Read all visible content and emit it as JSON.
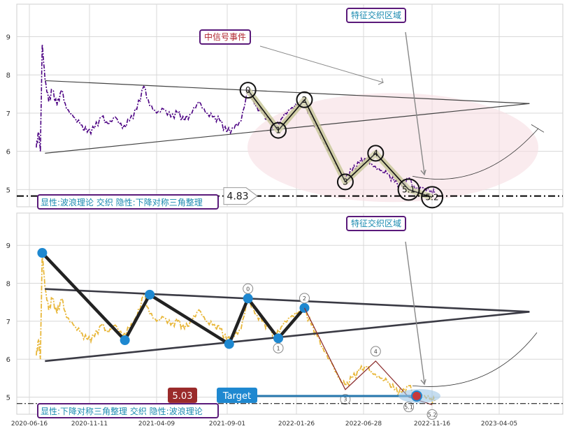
{
  "colors": {
    "price_top": "#4b0082",
    "price_bottom": "#e8b73a",
    "swing_fill": "#c8c89a",
    "box_border": "#5a1a7a",
    "box_text": "#1a8ab0",
    "event_text": "#b0262e",
    "ellipse": "#f7dde2",
    "marker_blue": "#1e88d0",
    "badge_red": "#9a2a2a"
  },
  "top_panel": {
    "y_ticks": [
      "9",
      "8",
      "7",
      "6",
      "5"
    ],
    "callout_area": "特征交织区域",
    "callout_event": "中信号事件",
    "footer": "显性:波浪理论 交织 隐性:下降对称三角整理",
    "level_label": "4.83",
    "wave_labels": [
      "0",
      "1",
      "2",
      "3",
      "4",
      "5.1",
      "5.2"
    ]
  },
  "bottom_panel": {
    "y_ticks": [
      "9",
      "8",
      "7",
      "6",
      "5"
    ],
    "callout_area": "特征交织区域",
    "footer": "显性:下降对称三角整理 交织 隐性:波浪理论",
    "badge_value": "5.03",
    "target_label": "Target",
    "wave_labels": [
      "0",
      "1",
      "2",
      "3",
      "4",
      "5.1",
      "5.2"
    ]
  },
  "chart_data": {
    "type": "line",
    "x_tick_labels": [
      "2020-06-16",
      "2020-11-11",
      "2021-04-09",
      "2021-09-01",
      "2022-01-26",
      "2022-06-28",
      "2022-11-16",
      "2023-04-05"
    ],
    "ylim": [
      4.6,
      9.8
    ],
    "price_series": [
      [
        "2020-07-01",
        6.1
      ],
      [
        "2020-07-06",
        6.5
      ],
      [
        "2020-07-10",
        6.0
      ],
      [
        "2020-07-14",
        8.8
      ],
      [
        "2020-07-20",
        7.9
      ],
      [
        "2020-07-28",
        7.3
      ],
      [
        "2020-08-05",
        7.6
      ],
      [
        "2020-08-15",
        7.2
      ],
      [
        "2020-08-25",
        7.6
      ],
      [
        "2020-09-05",
        7.1
      ],
      [
        "2020-09-20",
        6.9
      ],
      [
        "2020-10-05",
        6.7
      ],
      [
        "2020-10-20",
        6.5
      ],
      [
        "2020-11-05",
        6.6
      ],
      [
        "2020-11-20",
        6.9
      ],
      [
        "2020-12-05",
        6.7
      ],
      [
        "2020-12-20",
        6.9
      ],
      [
        "2021-01-05",
        6.6
      ],
      [
        "2021-01-20",
        6.8
      ],
      [
        "2021-02-05",
        7.1
      ],
      [
        "2021-02-20",
        7.7
      ],
      [
        "2021-03-05",
        7.2
      ],
      [
        "2021-03-20",
        7.0
      ],
      [
        "2021-04-05",
        7.1
      ],
      [
        "2021-04-20",
        6.9
      ],
      [
        "2021-05-05",
        7.0
      ],
      [
        "2021-05-20",
        6.8
      ],
      [
        "2021-06-05",
        7.0
      ],
      [
        "2021-06-20",
        7.3
      ],
      [
        "2021-07-05",
        7.0
      ],
      [
        "2021-07-20",
        6.9
      ],
      [
        "2021-08-05",
        6.8
      ],
      [
        "2021-08-20",
        6.5
      ],
      [
        "2021-09-05",
        6.6
      ],
      [
        "2021-09-20",
        6.8
      ],
      [
        "2021-10-05",
        7.6
      ],
      [
        "2021-10-20",
        7.2
      ],
      [
        "2021-11-05",
        7.0
      ],
      [
        "2021-11-20",
        6.8
      ],
      [
        "2021-12-05",
        6.6
      ],
      [
        "2021-12-20",
        6.9
      ],
      [
        "2022-01-05",
        7.1
      ],
      [
        "2022-01-20",
        7.2
      ],
      [
        "2022-02-05",
        7.3
      ],
      [
        "2022-02-20",
        6.9
      ],
      [
        "2022-03-05",
        6.6
      ],
      [
        "2022-03-20",
        6.2
      ],
      [
        "2022-04-05",
        5.9
      ],
      [
        "2022-04-20",
        5.5
      ],
      [
        "2022-05-05",
        5.3
      ],
      [
        "2022-05-20",
        5.5
      ],
      [
        "2022-06-05",
        5.7
      ],
      [
        "2022-06-20",
        5.8
      ],
      [
        "2022-07-05",
        5.6
      ],
      [
        "2022-07-20",
        5.5
      ],
      [
        "2022-08-05",
        5.4
      ],
      [
        "2022-08-20",
        5.2
      ],
      [
        "2022-09-05",
        5.1
      ],
      [
        "2022-09-20",
        5.3
      ],
      [
        "2022-10-05",
        5.0
      ],
      [
        "2022-10-20",
        5.05
      ],
      [
        "2022-11-05",
        4.95
      ],
      [
        "2022-11-16",
        4.9
      ]
    ],
    "wave_points": [
      {
        "label": "0",
        "date": "2021-10-05",
        "value": 7.6
      },
      {
        "label": "1",
        "date": "2021-12-10",
        "value": 6.55
      },
      {
        "label": "2",
        "date": "2022-02-05",
        "value": 7.35
      },
      {
        "label": "3",
        "date": "2022-05-05",
        "value": 5.2
      },
      {
        "label": "4",
        "date": "2022-07-10",
        "value": 5.95
      },
      {
        "label": "5.1",
        "date": "2022-09-20",
        "value": 5.0
      },
      {
        "label": "5.2",
        "date": "2022-11-10",
        "value": 4.8
      }
    ],
    "triangle_upper": [
      [
        "2020-07-20",
        7.85
      ],
      [
        "2023-06-10",
        7.25
      ]
    ],
    "triangle_lower": [
      [
        "2020-07-20",
        5.95
      ],
      [
        "2023-06-10",
        7.25
      ]
    ],
    "bottom_zigzag": [
      {
        "date": "2020-07-14",
        "value": 8.8
      },
      {
        "date": "2021-01-10",
        "value": 6.5
      },
      {
        "date": "2021-03-05",
        "value": 7.7
      },
      {
        "date": "2021-08-25",
        "value": 6.4
      },
      {
        "date": "2021-10-05",
        "value": 7.6
      },
      {
        "date": "2021-12-10",
        "value": 6.55
      },
      {
        "date": "2022-02-05",
        "value": 7.35
      }
    ],
    "horizontal_level": 4.83,
    "target_value": 5.03
  }
}
